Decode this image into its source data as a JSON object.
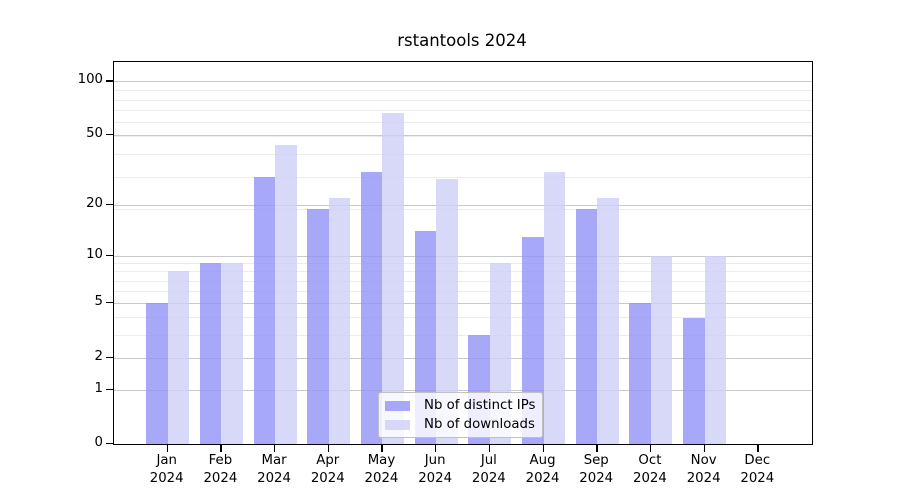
{
  "chart_data": {
    "type": "bar",
    "title": "rstantools 2024",
    "yscale": "log1p",
    "ylim": [
      0,
      100
    ],
    "grid": "on",
    "legend_position": "lower center inside plot",
    "categories": [
      "Jan 2024",
      "Feb 2024",
      "Mar 2024",
      "Apr 2024",
      "May 2024",
      "Jun 2024",
      "Jul 2024",
      "Aug 2024",
      "Sep 2024",
      "Oct 2024",
      "Nov 2024",
      "Dec 2024"
    ],
    "x_tick_month": [
      "Jan",
      "Feb",
      "Mar",
      "Apr",
      "May",
      "Jun",
      "Jul",
      "Aug",
      "Sep",
      "Oct",
      "Nov",
      "Dec"
    ],
    "x_tick_year": "2024",
    "series": [
      {
        "name": "Nb of distinct IPs",
        "color": "rgba(146,146,246,0.8)",
        "values": [
          5,
          9,
          29,
          19,
          31,
          14,
          3,
          13,
          19,
          5,
          4,
          0
        ]
      },
      {
        "name": "Nb of downloads",
        "color": "rgba(206,206,247,0.8)",
        "values": [
          8,
          9,
          44,
          22,
          66,
          28,
          9,
          31,
          22,
          10,
          10,
          0
        ]
      }
    ],
    "yticks": {
      "values": [
        0,
        1,
        2,
        5,
        10,
        20,
        50,
        100
      ],
      "labels": [
        "0",
        "1",
        "2",
        "5",
        "10",
        "20",
        "50",
        "100"
      ]
    },
    "gridlines": {
      "major": [
        1,
        2,
        5,
        10,
        20,
        50,
        100
      ],
      "minor": [
        3,
        4,
        6,
        7,
        8,
        9,
        19,
        29,
        39,
        49,
        59,
        69,
        79,
        89
      ]
    },
    "colors": {
      "major_grid": "#c9c9c9",
      "minor_grid": "#ececec",
      "spine": "#000000",
      "text": "#000000",
      "legend_border": "#c0c0c0",
      "legend_background": "rgba(255,255,255,0.8)"
    }
  }
}
